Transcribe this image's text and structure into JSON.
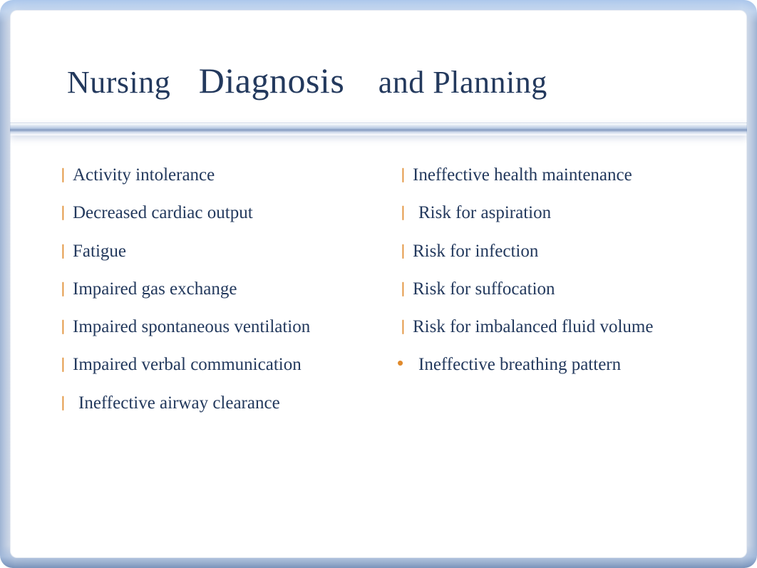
{
  "slide": {
    "title_parts": {
      "w1": "Nursing",
      "w2": "Diagnosis",
      "w3": "and Planning"
    },
    "title_color": "#23395d",
    "text_color": "#23395d",
    "bullet_color": "#e08a2c",
    "background_color": "#ffffff",
    "frame_gradient_top": "#a5c3eb",
    "frame_gradient_bottom": "#6482af",
    "title_fontsize_small": 44,
    "title_fontsize_large": 50,
    "body_fontsize": 25,
    "columns": [
      {
        "items": [
          {
            "bullet": "bar",
            "text": "Activity intolerance",
            "indent": false
          },
          {
            "bullet": "bar",
            "text": "Decreased cardiac output",
            "indent": false
          },
          {
            "bullet": "bar",
            "text": "Fatigue",
            "indent": false
          },
          {
            "bullet": "bar",
            "text": "Impaired gas exchange",
            "indent": false
          },
          {
            "bullet": "bar",
            "text": "Impaired spontaneous ventilation",
            "indent": false
          },
          {
            "bullet": "bar",
            "text": "Impaired verbal communication",
            "indent": false
          },
          {
            "bullet": "bar",
            "text": " Ineffective airway clearance",
            "indent": true
          }
        ]
      },
      {
        "items": [
          {
            "bullet": "bar",
            "text": "Ineffective health maintenance",
            "indent": false
          },
          {
            "bullet": "bar",
            "text": " Risk for aspiration",
            "indent": true
          },
          {
            "bullet": "bar",
            "text": "Risk for infection",
            "indent": false
          },
          {
            "bullet": "bar",
            "text": "Risk for suffocation",
            "indent": false
          },
          {
            "bullet": "bar",
            "text": "Risk for imbalanced fluid volume",
            "indent": false
          },
          {
            "bullet": "dot",
            "text": " Ineffective breathing pattern",
            "indent": true
          }
        ]
      }
    ]
  }
}
